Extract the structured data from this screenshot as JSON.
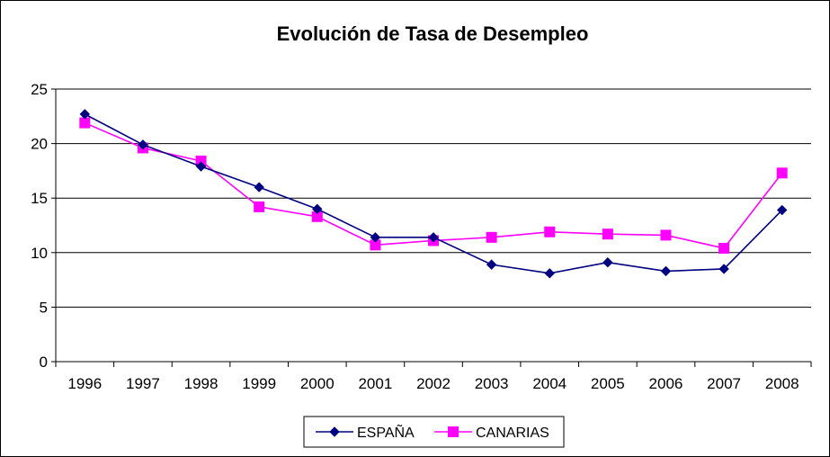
{
  "chart_data": {
    "type": "line",
    "title": "Evolución de Tasa de Desempleo",
    "xlabel": "",
    "ylabel": "",
    "categories": [
      "1996",
      "1997",
      "1998",
      "1999",
      "2000",
      "2001",
      "2002",
      "2003",
      "2004",
      "2005",
      "2006",
      "2007",
      "2008"
    ],
    "ylim": [
      0,
      25
    ],
    "yticks": [
      0,
      5,
      10,
      15,
      20,
      25
    ],
    "grid": true,
    "legend_position": "bottom",
    "series": [
      {
        "name": "ESPAÑA",
        "color": "#000080",
        "marker": "diamond",
        "values": [
          22.7,
          19.9,
          17.9,
          16.0,
          14.0,
          11.4,
          11.4,
          8.9,
          8.1,
          9.1,
          8.3,
          8.5,
          13.9
        ]
      },
      {
        "name": "CANARIAS",
        "color": "#ff00ff",
        "marker": "square",
        "values": [
          21.9,
          19.6,
          18.4,
          14.2,
          13.3,
          10.7,
          11.1,
          11.4,
          11.9,
          11.7,
          11.6,
          10.4,
          17.3
        ]
      }
    ]
  }
}
